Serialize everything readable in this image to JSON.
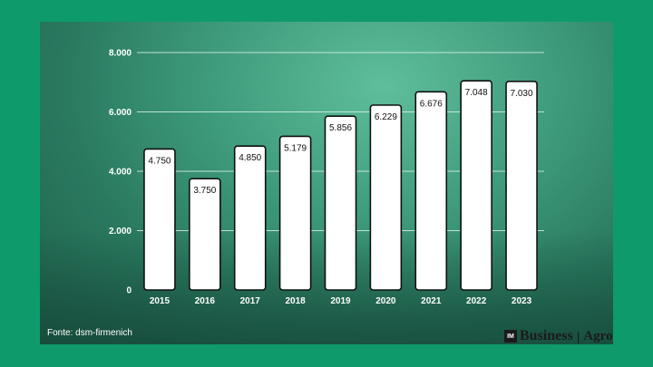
{
  "chart_data": {
    "type": "bar",
    "categories": [
      "2015",
      "2016",
      "2017",
      "2018",
      "2019",
      "2020",
      "2021",
      "2022",
      "2023"
    ],
    "values": [
      4750,
      3750,
      4850,
      5179,
      5856,
      6229,
      6676,
      7048,
      7030
    ],
    "value_labels": [
      "4.750",
      "3.750",
      "4.850",
      "5.179",
      "5.856",
      "6.229",
      "6.676",
      "7.048",
      "7.030"
    ],
    "y_ticks": [
      0,
      2000,
      4000,
      6000,
      8000
    ],
    "y_tick_labels": [
      "0",
      "2.000",
      "4.000",
      "6.000",
      "8.000"
    ],
    "ylim": [
      0,
      8000
    ],
    "grid": true,
    "bar_color": "#ffffff",
    "bar_edge_color": "#111111"
  },
  "source": "Fonte: dsm-firmenich",
  "logo": {
    "mark": "IM",
    "business": "Business",
    "separator": "|",
    "agro": "Agro"
  },
  "colors": {
    "frame": "#0f9a6c",
    "gridline": "#d8f0e6"
  }
}
